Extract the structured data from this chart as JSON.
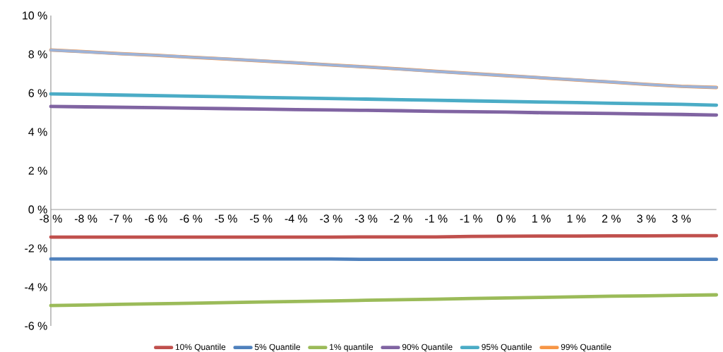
{
  "chart_data": {
    "type": "line",
    "categories": [
      "-8 %",
      "-8 %",
      "-7 %",
      "-6 %",
      "-6 %",
      "-5 %",
      "-5 %",
      "-4 %",
      "-3 %",
      "-3 %",
      "-2 %",
      "-1 %",
      "-1 %",
      "0 %",
      "1 %",
      "1 %",
      "2 %",
      "3 %",
      "3 %",
      null
    ],
    "series": [
      {
        "name": "10% Quantile",
        "color": "#c0504d",
        "values": [
          -1.42,
          -1.42,
          -1.42,
          -1.42,
          -1.42,
          -1.42,
          -1.42,
          -1.42,
          -1.42,
          -1.41,
          -1.41,
          -1.41,
          -1.39,
          -1.38,
          -1.37,
          -1.37,
          -1.36,
          -1.36,
          -1.35,
          -1.35
        ]
      },
      {
        "name": "5% Quantile",
        "color": "#4f81bd",
        "values": [
          -2.55,
          -2.55,
          -2.55,
          -2.55,
          -2.55,
          -2.55,
          -2.55,
          -2.55,
          -2.55,
          -2.57,
          -2.57,
          -2.57,
          -2.57,
          -2.57,
          -2.57,
          -2.57,
          -2.57,
          -2.57,
          -2.57,
          -2.57
        ]
      },
      {
        "name": "1% quantile",
        "color": "#9bbb59",
        "values": [
          -4.95,
          -4.92,
          -4.89,
          -4.86,
          -4.83,
          -4.8,
          -4.77,
          -4.74,
          -4.71,
          -4.68,
          -4.65,
          -4.62,
          -4.59,
          -4.56,
          -4.53,
          -4.5,
          -4.47,
          -4.45,
          -4.42,
          -4.4
        ]
      },
      {
        "name": "90% Quantile",
        "color": "#8064a2",
        "values": [
          5.31,
          5.29,
          5.27,
          5.25,
          5.22,
          5.2,
          5.18,
          5.15,
          5.13,
          5.11,
          5.09,
          5.06,
          5.04,
          5.02,
          4.99,
          4.97,
          4.95,
          4.92,
          4.9,
          4.87
        ]
      },
      {
        "name": "95% Quantile",
        "color": "#4bacc6",
        "values": [
          5.96,
          5.93,
          5.9,
          5.87,
          5.84,
          5.81,
          5.78,
          5.75,
          5.72,
          5.69,
          5.66,
          5.63,
          5.6,
          5.57,
          5.54,
          5.51,
          5.48,
          5.45,
          5.42,
          5.38
        ]
      },
      {
        "name": "99% Quantile",
        "color": "#f79646",
        "values": [
          8.22,
          8.13,
          8.03,
          7.95,
          7.85,
          7.76,
          7.66,
          7.56,
          7.45,
          7.35,
          7.24,
          7.12,
          7.01,
          6.9,
          6.79,
          6.68,
          6.57,
          6.45,
          6.35,
          6.29
        ]
      },
      {
        "color": "#9db3d8",
        "values": [
          8.22,
          8.13,
          8.03,
          7.95,
          7.85,
          7.76,
          7.66,
          7.56,
          7.45,
          7.35,
          7.24,
          7.12,
          7.01,
          6.9,
          6.79,
          6.68,
          6.57,
          6.45,
          6.35,
          6.29
        ]
      }
    ],
    "ylim": [
      -6,
      10
    ],
    "yticks": [
      {
        "value": -6,
        "label": "-6 %"
      },
      {
        "value": -4,
        "label": "-4 %"
      },
      {
        "value": -2,
        "label": "-2 %"
      },
      {
        "value": 0,
        "label": "0 %"
      },
      {
        "value": 2,
        "label": "2 %"
      },
      {
        "value": 4,
        "label": "4 %"
      },
      {
        "value": 6,
        "label": "6 %"
      },
      {
        "value": 8,
        "label": "8 %"
      },
      {
        "value": 10,
        "label": "10 %"
      }
    ],
    "legend": "bottom"
  }
}
